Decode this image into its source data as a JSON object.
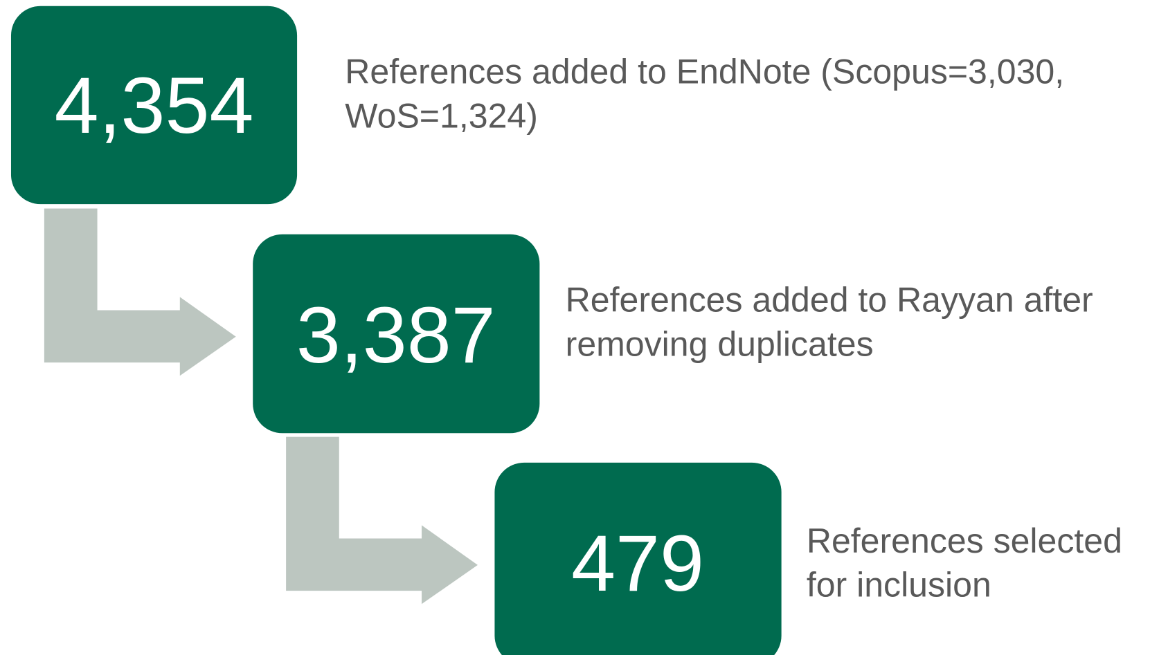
{
  "nodes": [
    {
      "value": "4,354",
      "label_lines": [
        "References added to EndNote (Scopus=3,030,",
        "WoS=1,324)"
      ]
    },
    {
      "value": "3,387",
      "label_lines": [
        "References added to Rayyan after",
        "removing duplicates"
      ]
    },
    {
      "value": "479",
      "label_lines": [
        "References selected",
        "for inclusion"
      ]
    }
  ]
}
